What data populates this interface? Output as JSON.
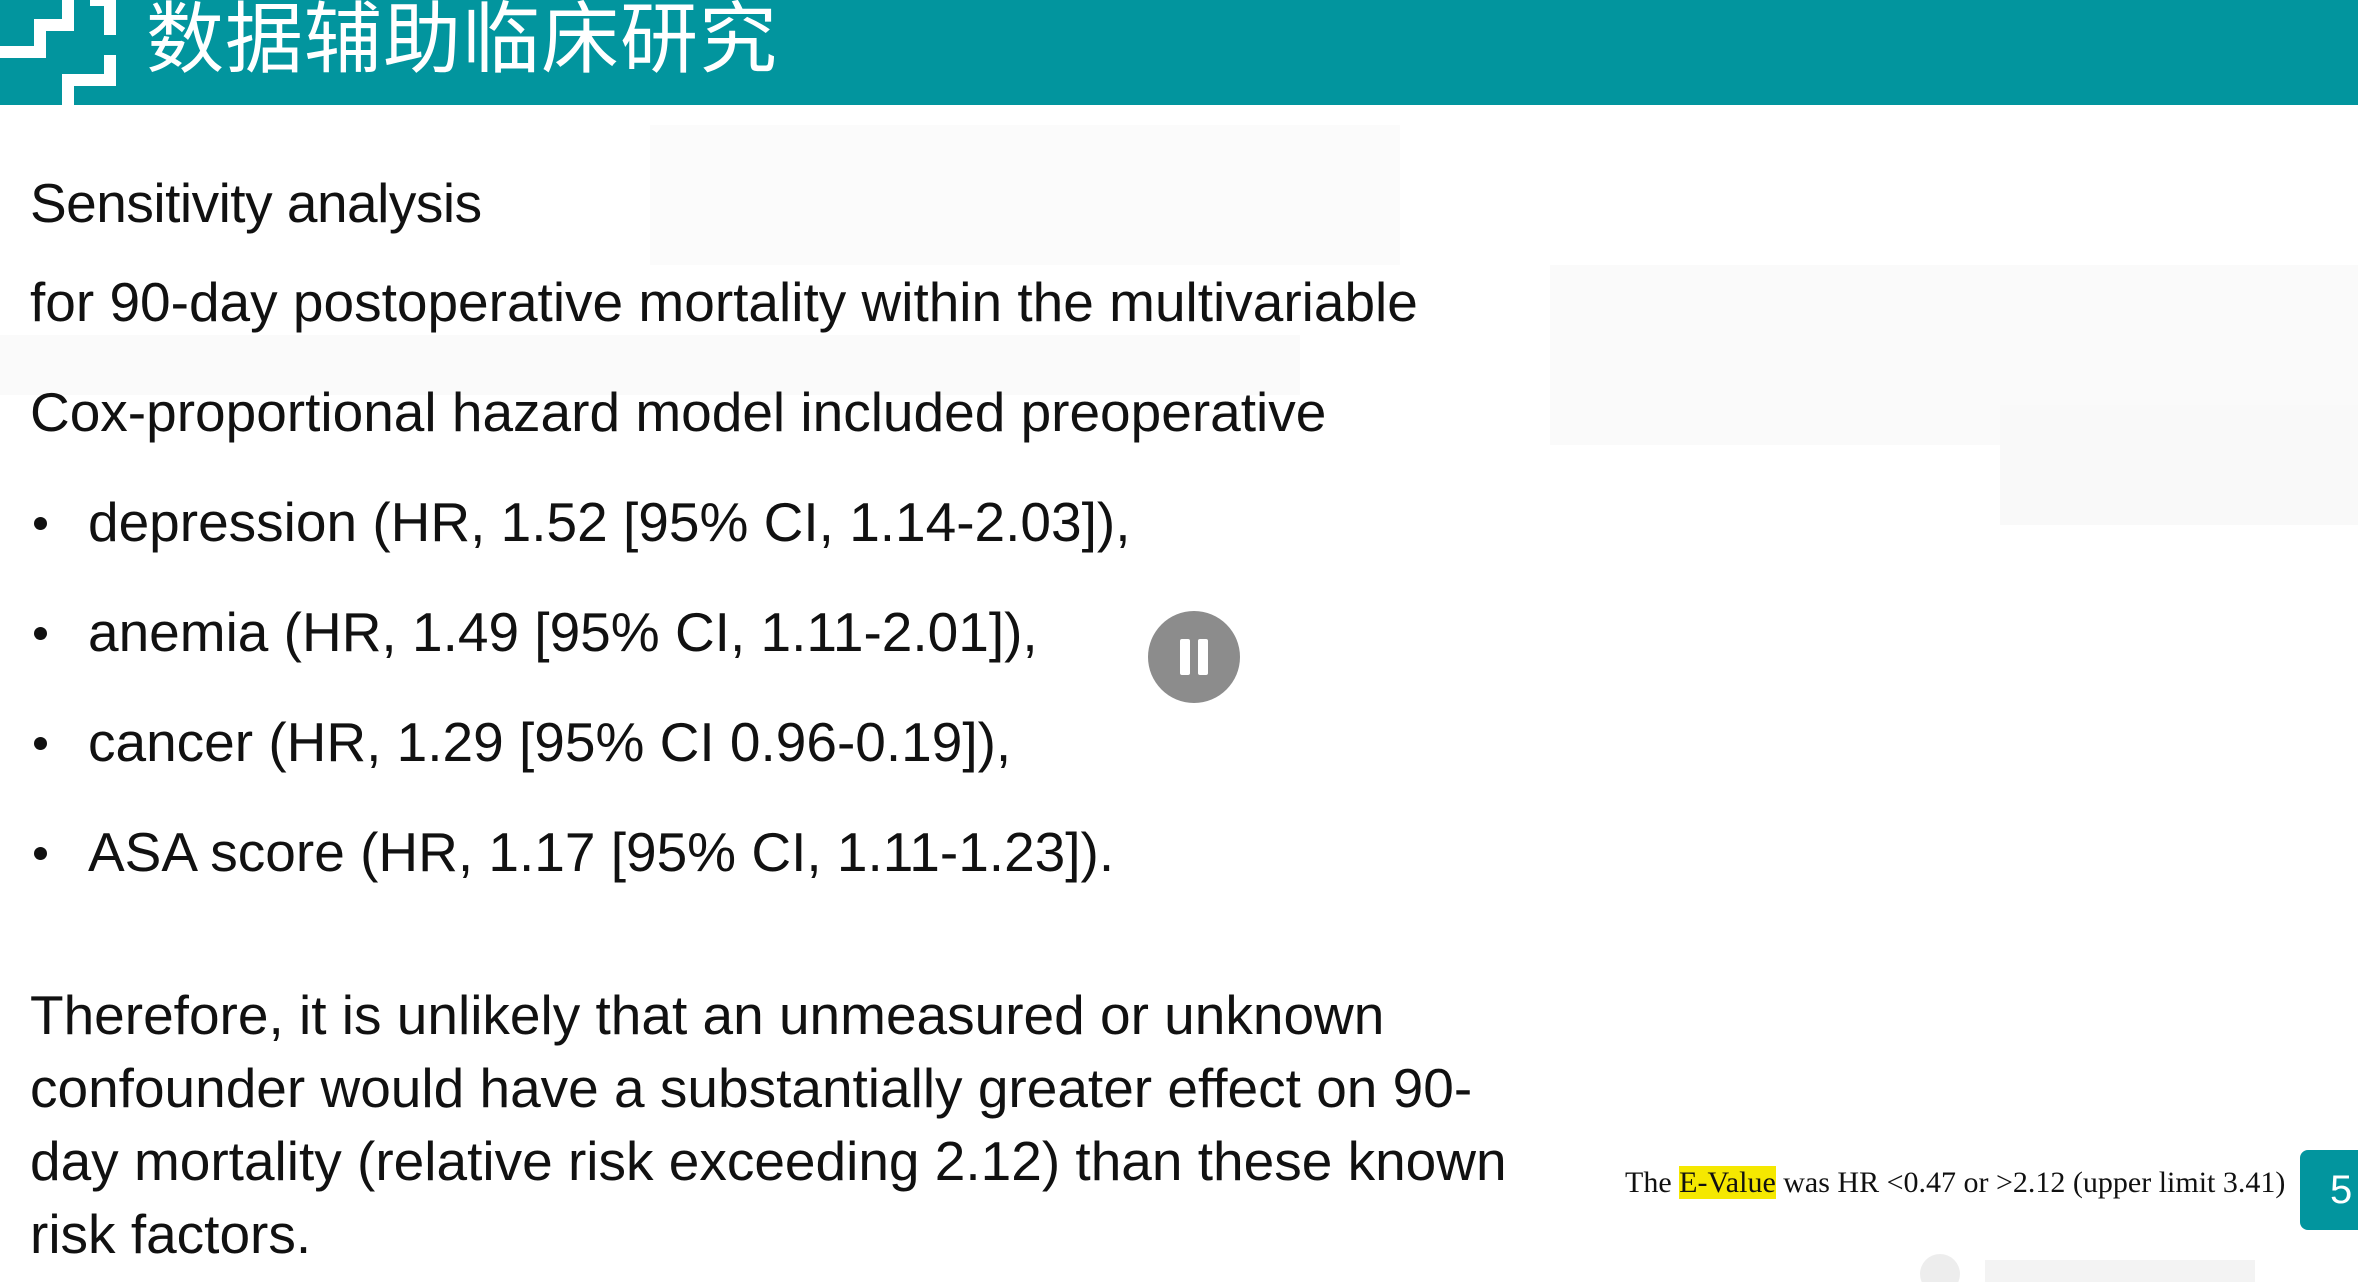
{
  "header": {
    "title": "数据辅助临床研究",
    "accent_color": "#02959e"
  },
  "slide": {
    "heading": "Sensitivity analysis",
    "intro_line1": "for 90-day postoperative mortality within the multivariable",
    "intro_line2": "Cox-proportional hazard model included preoperative",
    "bullets": [
      "depression (HR, 1.52 [95% CI, 1.14-2.03]),",
      "anemia (HR, 1.49 [95% CI, 1.11-2.01]),",
      "cancer (HR, 1.29 [95% CI 0.96-0.19]),",
      "ASA score (HR, 1.17 [95% CI, 1.11-1.23])."
    ],
    "conclusion_lines": [
      "Therefore, it is unlikely that an unmeasured or unknown",
      "confounder would have a substantially greater effect on 90-",
      "day mortality (relative risk exceeding 2.12) than these known",
      "risk factors."
    ],
    "evalue": {
      "prefix": "The ",
      "highlight": "E-Value",
      "suffix": " was HR <0.47 or >2.12 (upper limit 3.41)",
      "highlight_color": "#f5e800"
    },
    "page_number": "5"
  },
  "player": {
    "pause_icon": "pause-icon"
  }
}
